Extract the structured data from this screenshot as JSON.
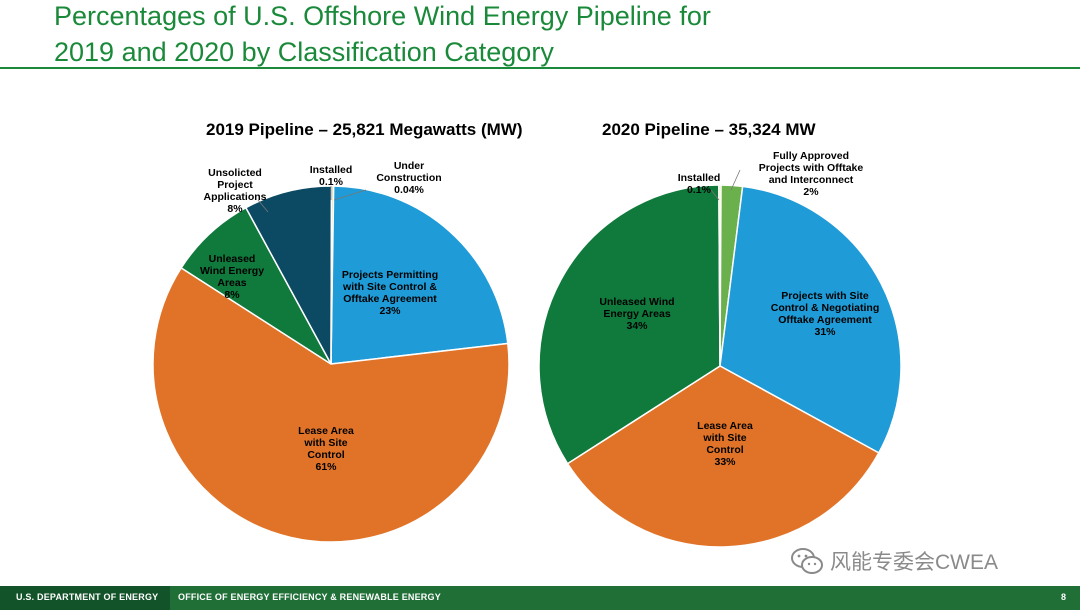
{
  "page": {
    "title_line1": "Percentages of U.S. Offshore Wind Energy Pipeline for",
    "title_line2": "2019 and 2020 by Classification Category"
  },
  "footer": {
    "org": "U.S. DEPARTMENT OF ENERGY",
    "office": "OFFICE OF ENERGY EFFICIENCY & RENEWABLE ENERGY",
    "page_number": "8"
  },
  "watermark": {
    "text": "风能专委会CWEA"
  },
  "colors": {
    "brand_green": "#1a8a3a",
    "footer_green": "#1f6f37",
    "orange": "#e07328",
    "blue": "#1f9bd7",
    "dark_green": "#0f7a3c",
    "navy": "#0c4a63",
    "light_green": "#6ab04c",
    "pale_yellow": "#e8eaa0"
  },
  "chart_data": [
    {
      "type": "pie",
      "title": "2019 Pipeline – 25,821 Megawatts (MW)",
      "slices": [
        {
          "label": [
            "Under",
            "Construction",
            "0.04%"
          ],
          "value": 0.04,
          "color": "#e8eaa0"
        },
        {
          "label": [
            "Projects Permitting",
            "with Site Control &",
            "Offtake Agreement",
            "23%"
          ],
          "value": 23,
          "color": "#1f9bd7"
        },
        {
          "label": [
            "Lease Area",
            "with Site",
            "Control",
            "61%"
          ],
          "value": 61,
          "color": "#e07328"
        },
        {
          "label": [
            "Unleased",
            "Wind Energy",
            "Areas",
            "8%"
          ],
          "value": 8,
          "color": "#0f7a3c"
        },
        {
          "label": [
            "Unsolicted",
            "Project",
            "Applications",
            "8%"
          ],
          "value": 8,
          "color": "#0c4a63"
        },
        {
          "label": [
            "Installed",
            "0.1%"
          ],
          "value": 0.1,
          "color": "#cfd88a"
        }
      ]
    },
    {
      "type": "pie",
      "title": "2020 Pipeline – 35,324 MW",
      "slices": [
        {
          "label": [
            "Fully Approved",
            "Projects with Offtake",
            "and Interconnect",
            "2%"
          ],
          "value": 2,
          "color": "#6ab04c"
        },
        {
          "label": [
            "Projects with Site",
            "Control & Negotiating",
            "Offtake Agreement",
            "31%"
          ],
          "value": 31,
          "color": "#1f9bd7"
        },
        {
          "label": [
            "Lease Area",
            "with Site",
            "Control",
            "33%"
          ],
          "value": 33,
          "color": "#e07328"
        },
        {
          "label": [
            "Unleased Wind",
            "Energy Areas",
            "34%"
          ],
          "value": 34,
          "color": "#0f7a3c"
        },
        {
          "label": [
            "Installed",
            "0.1%"
          ],
          "value": 0.1,
          "color": "#e8eaa0"
        }
      ]
    }
  ]
}
